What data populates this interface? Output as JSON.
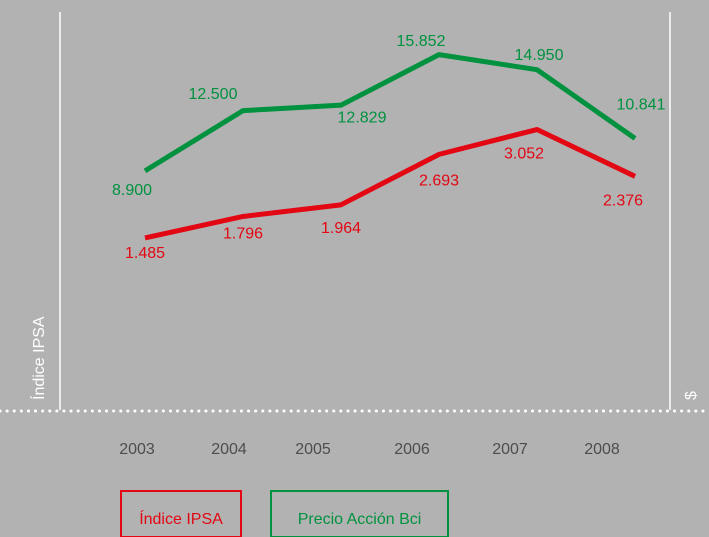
{
  "chart_data": {
    "type": "line",
    "y_label": "Índice IPSA",
    "y2_label": "$",
    "categories": [
      "2003",
      "2004",
      "2005",
      "2006",
      "2007",
      "2008"
    ],
    "series": [
      {
        "name": "Índice IPSA",
        "color": "#e30613",
        "values": [
          1485,
          1796,
          1964,
          2693,
          3052,
          2376
        ],
        "value_labels": [
          "1.485",
          "1.796",
          "1.964",
          "2.693",
          "3.052",
          "2.376"
        ]
      },
      {
        "name": "Precio Acción Bci",
        "color": "#00923f",
        "axis": "y2",
        "values": [
          8900,
          12500,
          12829,
          15852,
          14950,
          10841
        ],
        "value_labels": [
          "8.900",
          "12.500",
          "12.829",
          "15.852",
          "14.950",
          "10.841"
        ]
      }
    ],
    "ylim": [
      -1000,
      4750
    ],
    "y2lim": [
      -5400,
      18400
    ]
  }
}
